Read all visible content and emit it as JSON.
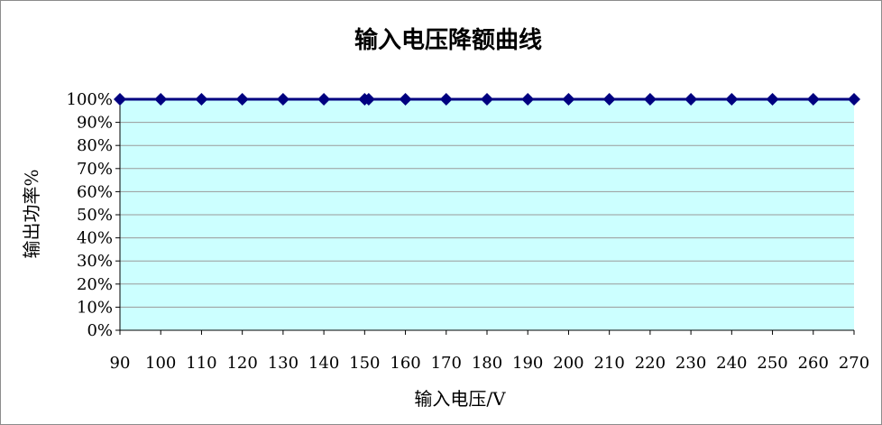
{
  "chart_data": {
    "type": "line",
    "title": "输入电压降额曲线",
    "xlabel": "输入电压/V",
    "ylabel": "输出功率%",
    "x": [
      90,
      100,
      110,
      120,
      130,
      140,
      150,
      151,
      160,
      170,
      180,
      190,
      200,
      210,
      220,
      230,
      240,
      250,
      260,
      270
    ],
    "x_tick_labels": [
      "90",
      "100",
      "110",
      "120",
      "130",
      "140",
      "150",
      "160",
      "170",
      "180",
      "190",
      "200",
      "210",
      "220",
      "230",
      "240",
      "250",
      "260",
      "270"
    ],
    "y_tick_labels": [
      "0%",
      "10%",
      "20%",
      "30%",
      "40%",
      "50%",
      "60%",
      "70%",
      "80%",
      "90%",
      "100%"
    ],
    "series": [
      {
        "values": [
          100,
          100,
          100,
          100,
          100,
          100,
          100,
          100,
          100,
          100,
          100,
          100,
          100,
          100,
          100,
          100,
          100,
          100,
          100,
          100
        ],
        "color": "#000080"
      }
    ],
    "xlim": [
      90,
      270
    ],
    "ylim": [
      0,
      100
    ],
    "grid": true,
    "plot_background": "#ccffff",
    "legend": "none"
  }
}
